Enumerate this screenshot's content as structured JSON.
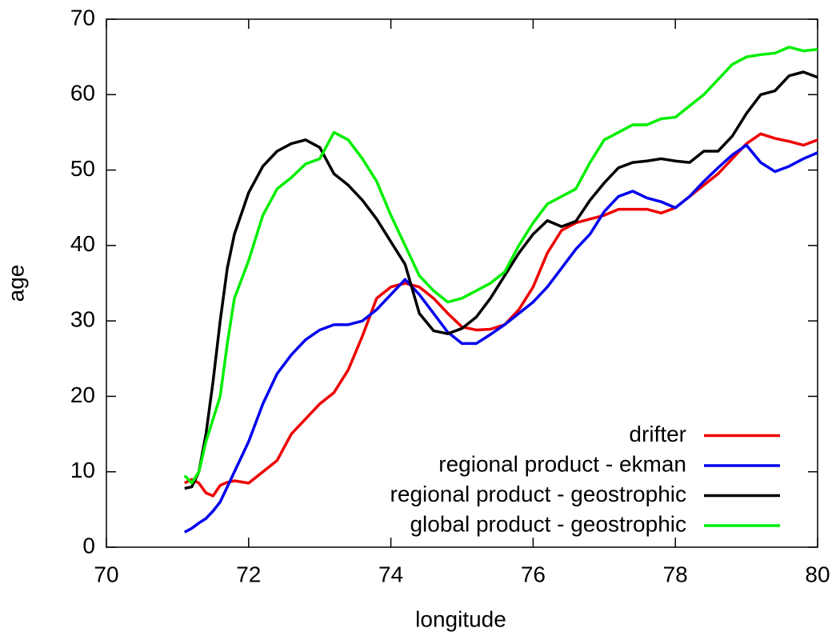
{
  "chart_data": {
    "type": "line",
    "x_label": "longitude",
    "y_label": "age",
    "x": [
      71.1,
      71.2,
      71.3,
      71.4,
      71.5,
      71.6,
      71.7,
      71.8,
      72.0,
      72.2,
      72.4,
      72.6,
      72.8,
      73.0,
      73.2,
      73.4,
      73.6,
      73.8,
      74.0,
      74.2,
      74.4,
      74.6,
      74.8,
      75.0,
      75.2,
      75.4,
      75.6,
      75.8,
      76.0,
      76.2,
      76.4,
      76.6,
      76.8,
      77.0,
      77.2,
      77.4,
      77.6,
      77.8,
      78.0,
      78.2,
      78.4,
      78.6,
      78.8,
      79.0,
      79.2,
      79.4,
      79.6,
      79.8,
      80.0
    ],
    "series": [
      {
        "name": "drifter",
        "color": "#ee0000",
        "values": [
          8.5,
          9,
          8.5,
          7.2,
          6.8,
          8.2,
          8.6,
          8.8,
          8.5,
          10,
          11.5,
          15,
          17,
          19,
          20.5,
          23.5,
          28,
          33,
          34.5,
          35,
          34.5,
          33,
          31,
          29.2,
          28.8,
          28.9,
          29.5,
          31.5,
          34.5,
          39,
          42,
          43,
          43.5,
          44,
          44.8,
          44.8,
          44.8,
          44.3,
          45,
          46.5,
          48,
          49.5,
          51.5,
          53.5,
          54.8,
          54.2,
          53.8,
          53.3,
          54
        ]
      },
      {
        "name": "regional product - ekman",
        "color": "#0000ee",
        "values": [
          2,
          2.5,
          3.2,
          3.8,
          4.8,
          6,
          8,
          10,
          14,
          19,
          23,
          25.5,
          27.5,
          28.8,
          29.5,
          29.5,
          30,
          31.5,
          33.5,
          35.5,
          33.5,
          31,
          28.5,
          27,
          27,
          28.2,
          29.5,
          31,
          32.5,
          34.5,
          37,
          39.5,
          41.5,
          44.5,
          46.5,
          47.2,
          46.3,
          45.8,
          45,
          46.5,
          48.5,
          50.3,
          52,
          53.3,
          51,
          49.8,
          50.5,
          51.5,
          52.3
        ]
      },
      {
        "name": "regional product - geostrophic",
        "color": "#000000",
        "values": [
          7.8,
          8,
          10,
          15,
          22,
          30,
          37,
          41.5,
          47,
          50.5,
          52.5,
          53.5,
          54,
          53,
          49.5,
          48,
          46,
          43.5,
          40.5,
          37.5,
          31,
          28.7,
          28.3,
          29,
          30.5,
          33,
          36,
          39,
          41.5,
          43.3,
          42.5,
          43.2,
          46,
          48.3,
          50.3,
          51,
          51.2,
          51.5,
          51.2,
          51,
          52.5,
          52.5,
          54.5,
          57.5,
          60,
          60.5,
          62.5,
          63,
          62.3
        ]
      },
      {
        "name": "global product - geostrophic",
        "color": "#00ee00",
        "values": [
          9.5,
          8.5,
          10,
          14,
          17,
          20,
          27,
          33,
          38,
          44,
          47.5,
          49,
          50.8,
          51.5,
          55,
          54,
          51.5,
          48.5,
          44,
          40,
          36,
          34,
          32.5,
          33,
          34,
          35,
          36.5,
          40,
          43,
          45.5,
          46.5,
          47.5,
          51,
          54,
          55,
          56,
          56,
          56.8,
          57,
          58.5,
          60,
          62,
          64,
          65,
          65.3,
          65.5,
          66.3,
          65.8,
          66
        ]
      }
    ],
    "xlim": [
      70,
      80
    ],
    "xticks": [
      70,
      72,
      74,
      76,
      78,
      80
    ],
    "ylim": [
      0,
      70
    ],
    "yticks": [
      0,
      10,
      20,
      30,
      40,
      50,
      60,
      70
    ],
    "grid": false,
    "legend": "lower right"
  }
}
